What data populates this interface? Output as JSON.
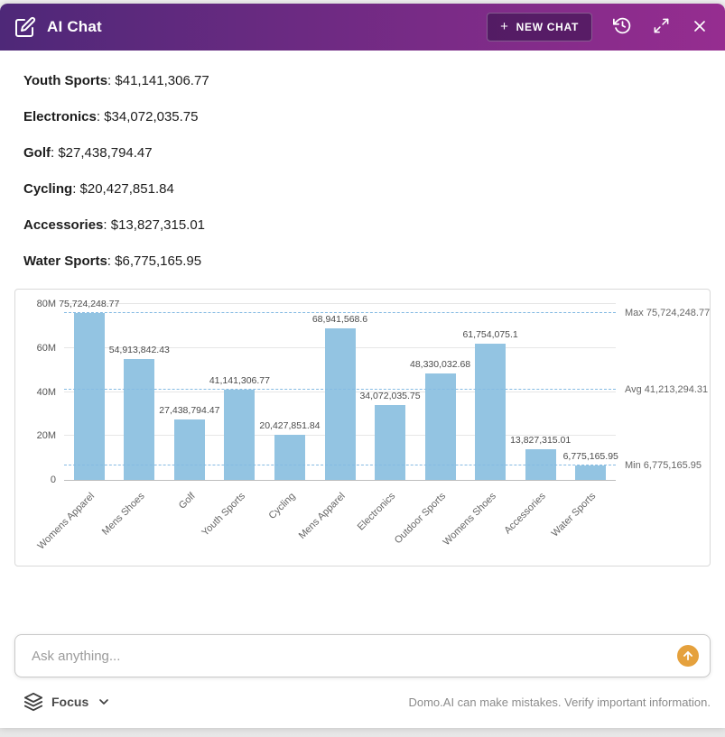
{
  "header": {
    "title": "AI Chat",
    "gradient_left": "#4e2878",
    "gradient_right": "#962d90",
    "new_chat_plus": "+",
    "new_chat_label": "NEW CHAT"
  },
  "messages": [
    {
      "label": "Youth Sports",
      "value": "$41,141,306.77"
    },
    {
      "label": "Electronics",
      "value": "$34,072,035.75"
    },
    {
      "label": "Golf",
      "value": "$27,438,794.47"
    },
    {
      "label": "Cycling",
      "value": "$20,427,851.84"
    },
    {
      "label": "Accessories",
      "value": "$13,827,315.01"
    },
    {
      "label": "Water Sports",
      "value": "$6,775,165.95"
    }
  ],
  "chart_data": {
    "type": "bar",
    "title": "",
    "xlabel": "",
    "ylabel": "",
    "legend": "none",
    "grid": true,
    "categories": [
      "Womens Apparel",
      "Mens Shoes",
      "Golf",
      "Youth Sports",
      "Cycling",
      "Mens Apparel",
      "Electronics",
      "Outdoor Sports",
      "Womens Shoes",
      "Accessories",
      "Water Sports"
    ],
    "values": [
      75724248.77,
      54913842.43,
      27438794.47,
      41141306.77,
      20427851.84,
      68941568.6,
      34072035.75,
      48330032.68,
      61754075.1,
      13827315.01,
      6775165.95
    ],
    "value_labels": [
      "75,724,248.77",
      "54,913,842.43",
      "27,438,794.47",
      "41,141,306.77",
      "20,427,851.84",
      "68,941,568.6",
      "34,072,035.75",
      "48,330,032.68",
      "61,754,075.1",
      "13,827,315.01",
      "6,775,165.95"
    ],
    "ylim": [
      0,
      80000000
    ],
    "yticks": [
      {
        "value": 0,
        "label": "0"
      },
      {
        "value": 20000000,
        "label": "20M"
      },
      {
        "value": 40000000,
        "label": "40M"
      },
      {
        "value": 60000000,
        "label": "60M"
      },
      {
        "value": 80000000,
        "label": "80M"
      }
    ],
    "reference_lines": [
      {
        "name": "max",
        "value": 75724248.77,
        "label": "Max 75,724,248.77"
      },
      {
        "name": "avg",
        "value": 41213294.31,
        "label": "Avg 41,213,294.31"
      },
      {
        "name": "min",
        "value": 6775165.95,
        "label": "Min 6,775,165.95"
      }
    ],
    "bar_color": "#93c4e2",
    "reference_line_color": "#85bbe3"
  },
  "input": {
    "placeholder": "Ask anything...",
    "send_color": "#e5a13d"
  },
  "footer": {
    "focus_label": "Focus",
    "disclaimer": "Domo.AI can make mistakes. Verify important information."
  }
}
